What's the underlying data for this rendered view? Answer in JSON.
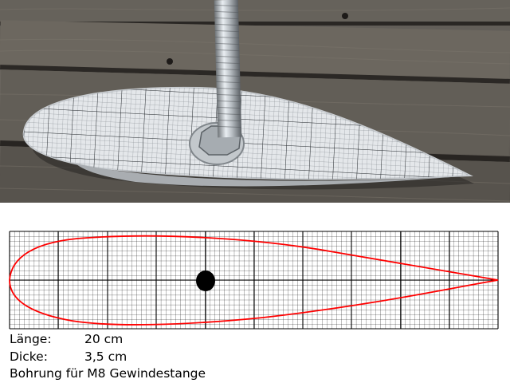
{
  "photo": {
    "description_icon": "airfoil-template-on-wooden-deck-photo"
  },
  "diagram": {
    "grid_color": "#000000",
    "profile_color": "#ff0000",
    "hole_color": "#000000"
  },
  "specs": {
    "length_label": "Länge:",
    "length_value": "20 cm",
    "thickness_label": "Dicke:",
    "thickness_value": "3,5 cm",
    "bore_text": "Bohrung für M8 Gewindestange"
  }
}
